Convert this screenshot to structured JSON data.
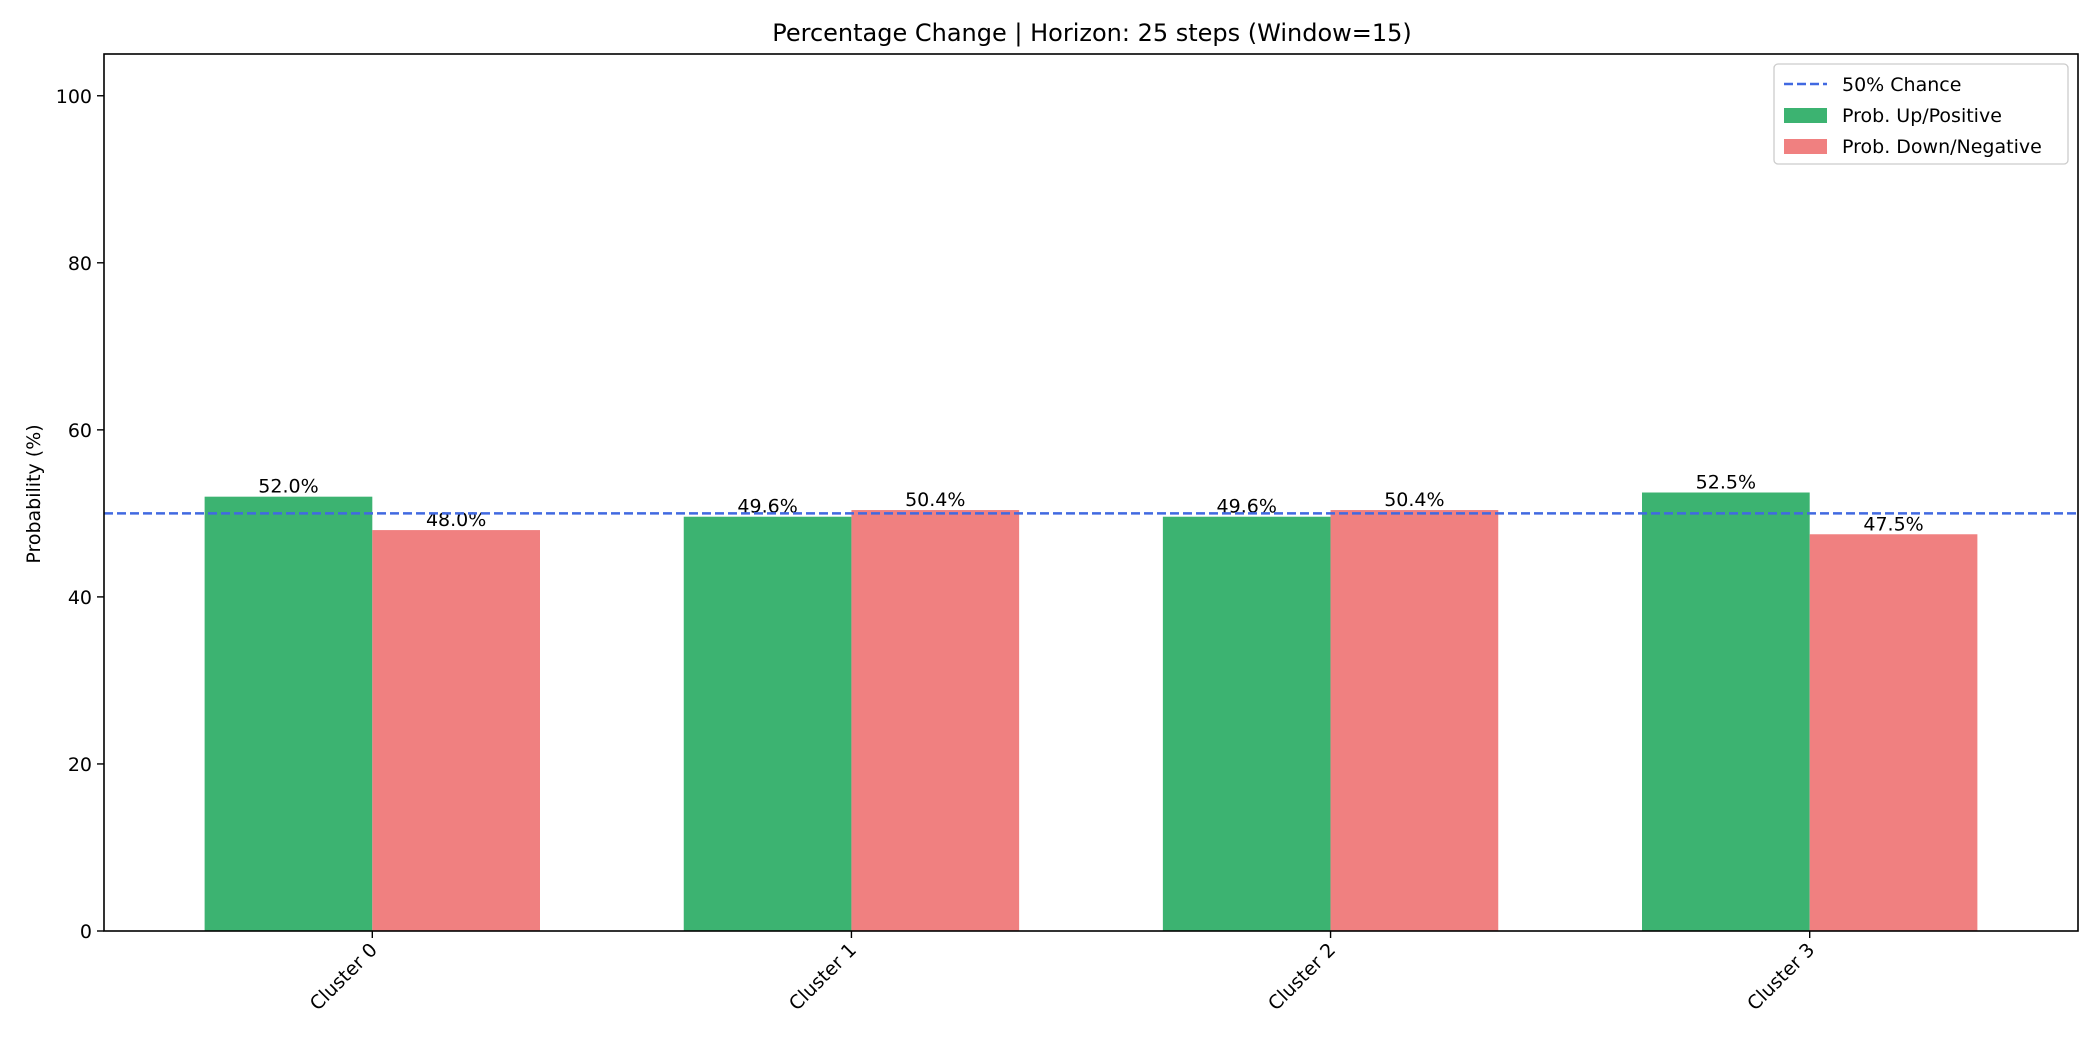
{
  "chart_data": {
    "type": "bar",
    "title": "Percentage Change | Horizon: 25 steps (Window=15)",
    "xlabel": "",
    "ylabel": "Probability (%)",
    "ylim": [
      0,
      105
    ],
    "yticks": [
      0,
      20,
      40,
      60,
      80,
      100
    ],
    "categories": [
      "Cluster 0",
      "Cluster 1",
      "Cluster 2",
      "Cluster 3"
    ],
    "series": [
      {
        "name": "Prob. Up/Positive",
        "color": "#3cb371",
        "values": [
          52.0,
          49.6,
          49.6,
          52.5
        ],
        "labels": [
          "52.0%",
          "49.6%",
          "49.6%",
          "52.5%"
        ]
      },
      {
        "name": "Prob. Down/Negative",
        "color": "#f08080",
        "values": [
          48.0,
          50.4,
          50.4,
          47.5
        ],
        "labels": [
          "48.0%",
          "50.4%",
          "50.4%",
          "47.5%"
        ]
      }
    ],
    "reference_line": {
      "name": "50% Chance",
      "value": 50,
      "color": "#4169e1",
      "style": "dashed"
    },
    "legend_position": "top-right",
    "grid": false
  }
}
